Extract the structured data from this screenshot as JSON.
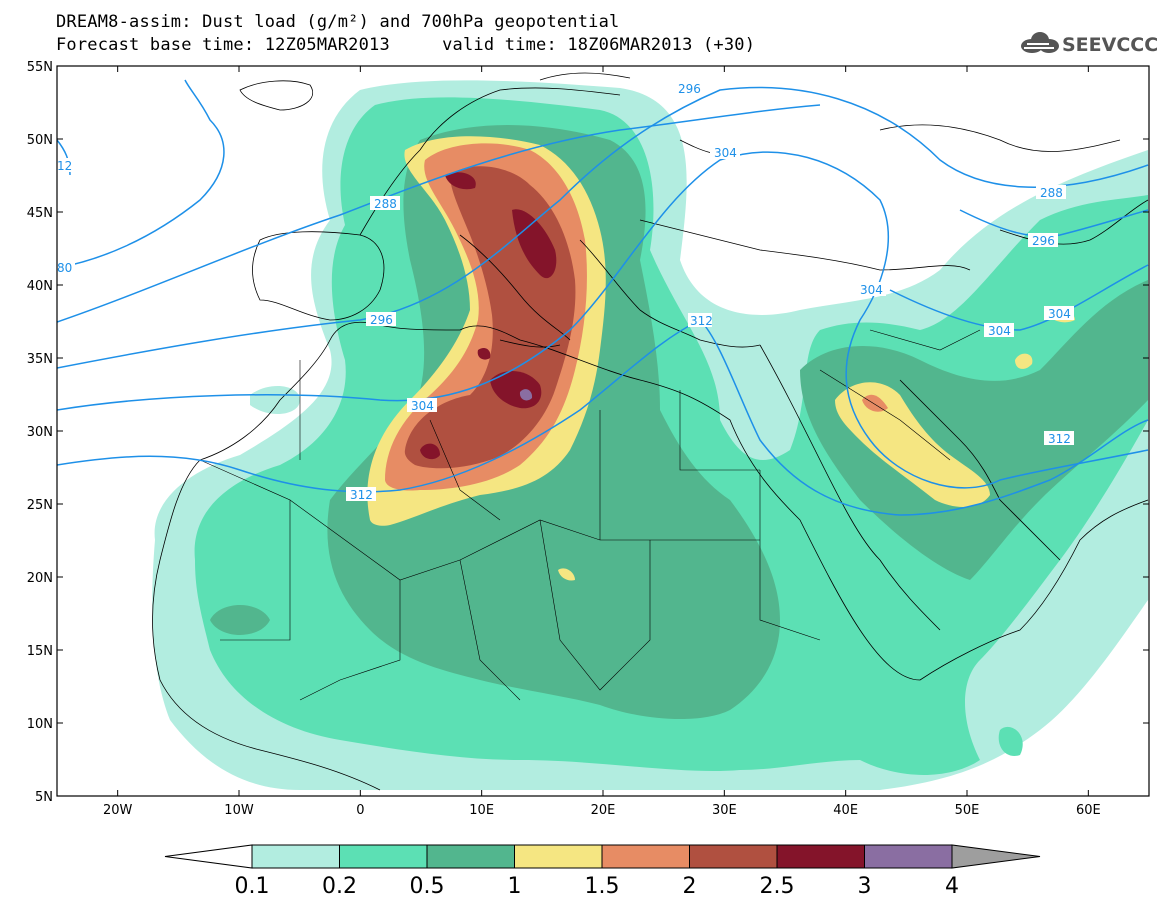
{
  "header": {
    "title_line1": "DREAM8-assim: Dust load (g/m²) and 700hPa geopotential",
    "forecast_base": "Forecast base time: 12Z05MAR2013",
    "valid_time": "valid time: 18Z06MAR2013 (+30)"
  },
  "logo": {
    "text": "SEEVCCC",
    "icon": "cloud-logo-icon"
  },
  "axes": {
    "lat_labels": [
      "55N",
      "50N",
      "45N",
      "40N",
      "35N",
      "30N",
      "25N",
      "20N",
      "15N",
      "10N",
      "5N"
    ],
    "lon_labels": [
      "20W",
      "10W",
      "0",
      "10E",
      "20E",
      "30E",
      "40E",
      "50E",
      "60E"
    ]
  },
  "contour_labels": [
    {
      "text": "296",
      "id": "c296a"
    },
    {
      "text": "304",
      "id": "c304a"
    },
    {
      "text": "288",
      "id": "c288a"
    },
    {
      "text": "296",
      "id": "c296b"
    },
    {
      "text": "304",
      "id": "c304b"
    },
    {
      "text": "312",
      "id": "c312a"
    },
    {
      "text": "312",
      "id": "c312b"
    },
    {
      "text": "304",
      "id": "c304c"
    },
    {
      "text": "304",
      "id": "c304d"
    },
    {
      "text": "304",
      "id": "c304e"
    },
    {
      "text": "296",
      "id": "c296c"
    },
    {
      "text": "288",
      "id": "c288b"
    },
    {
      "text": "312",
      "id": "c312c"
    },
    {
      "text": "12",
      "id": "c12"
    },
    {
      "text": "80",
      "id": "c80"
    }
  ],
  "colorbar": {
    "labels": [
      "0.1",
      "0.2",
      "0.5",
      "1",
      "1.5",
      "2",
      "2.5",
      "3",
      "4"
    ],
    "colors": [
      "#ffffff",
      "#b2ede0",
      "#5ce0b4",
      "#52b68e",
      "#f5e682",
      "#e78c64",
      "#b05040",
      "#84142a",
      "#8a6ea2",
      "#9e9e9e"
    ]
  },
  "colors": {
    "geopotential_contour": "#1e90e8",
    "coastline": "#000000"
  }
}
